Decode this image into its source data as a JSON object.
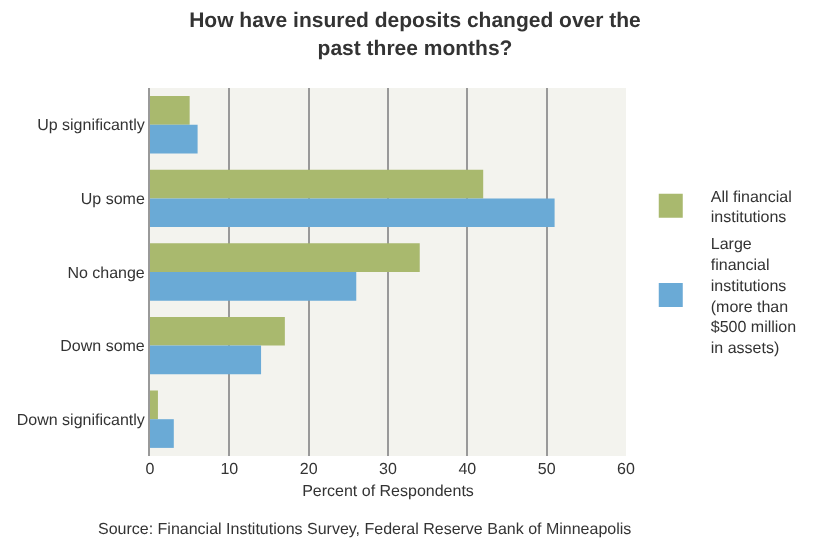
{
  "chart_data": {
    "type": "bar",
    "orientation": "horizontal",
    "title": "How have insured deposits changed over the past three months?",
    "xlabel": "Percent of Respondents",
    "categories": [
      "Up significantly",
      "Up some",
      "No change",
      "Down some",
      "Down significantly"
    ],
    "series": [
      {
        "name": "All financial institutions",
        "color": "#a9b96e",
        "values": [
          5,
          42,
          34,
          17,
          1
        ]
      },
      {
        "name": "Large financial institutions (more than $500 million in assets)",
        "color": "#6aaad6",
        "values": [
          6,
          51,
          26,
          14,
          3
        ]
      }
    ],
    "xlim": [
      0,
      60
    ],
    "xticks": [
      0,
      10,
      20,
      30,
      40,
      50,
      60
    ],
    "grid": "x",
    "legend": "right",
    "annotations": [
      "Source: Financial Institutions Survey, Federal Reserve Bank of Minneapolis"
    ]
  }
}
